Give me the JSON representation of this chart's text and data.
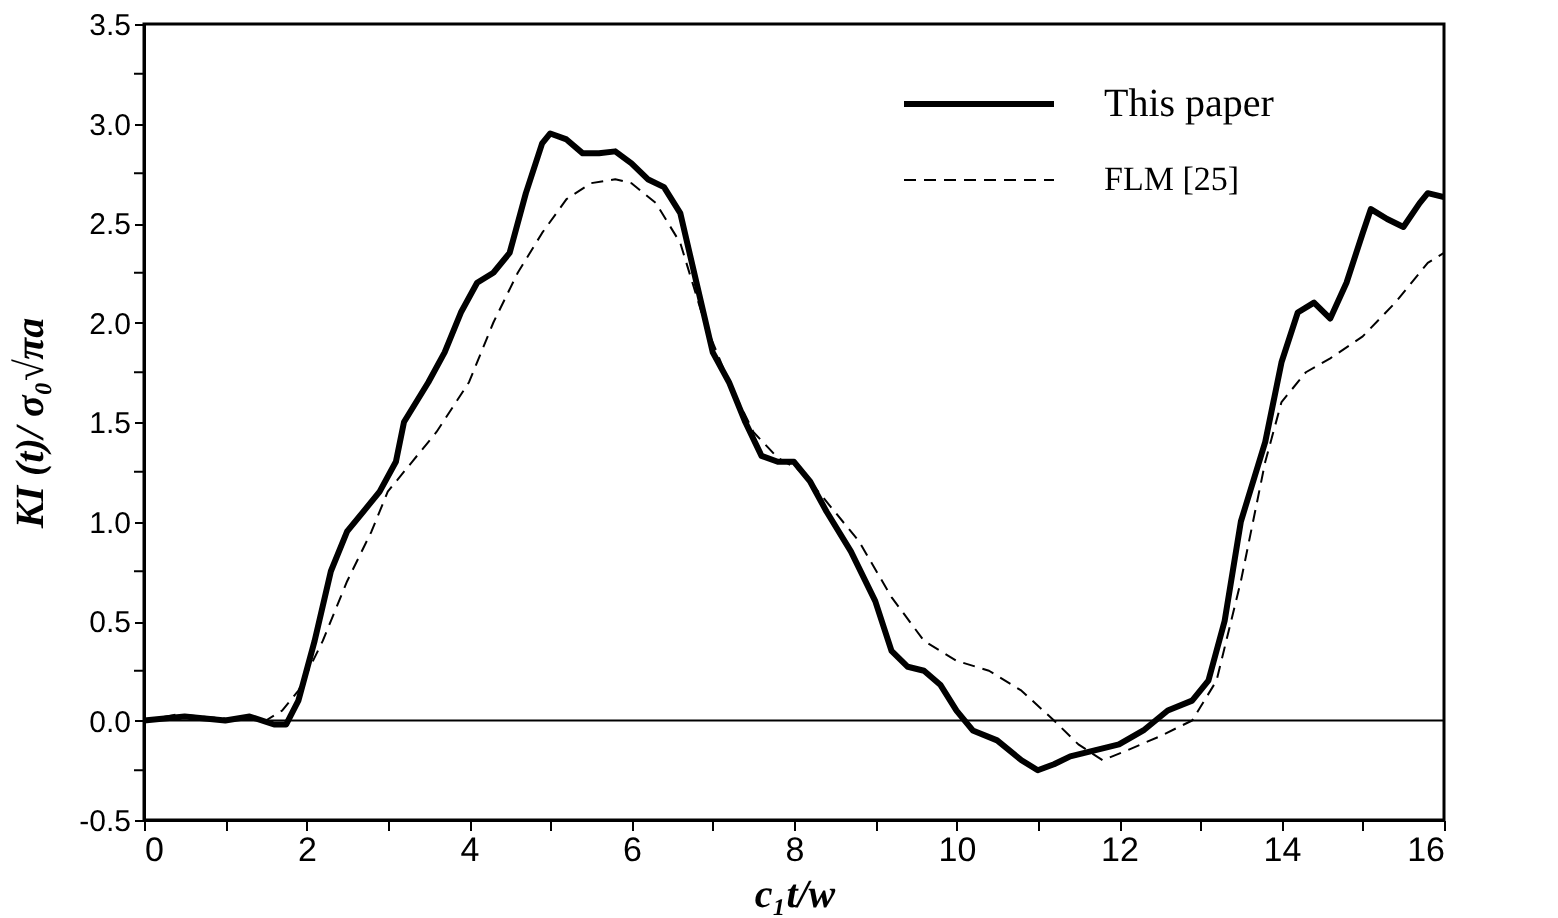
{
  "chart_data": {
    "type": "line",
    "xlabel": "c₁t/w",
    "ylabel": "KI (t)/ σ₀√πa",
    "xlim": [
      0,
      16
    ],
    "ylim": [
      -0.5,
      3.5
    ],
    "xticks": [
      0,
      {
        "value": 1,
        "label": null
      },
      2,
      {
        "value": 3,
        "label": null
      },
      4,
      {
        "value": 5,
        "label": null
      },
      6,
      {
        "value": 7,
        "label": null
      },
      8,
      {
        "value": 9,
        "label": null
      },
      10,
      {
        "value": 11,
        "label": null
      },
      12,
      {
        "value": 13,
        "label": null
      },
      14,
      {
        "value": 15,
        "label": null
      },
      16
    ],
    "yticks": [
      -0.5,
      {
        "value": -0.25,
        "label": null
      },
      {
        "value": 0,
        "label": "0.0"
      },
      {
        "value": 0.25,
        "label": null
      },
      0.5,
      {
        "value": 0.75,
        "label": null
      },
      {
        "value": 1,
        "label": "1.0"
      },
      {
        "value": 1.25,
        "label": null
      },
      1.5,
      {
        "value": 1.75,
        "label": null
      },
      {
        "value": 2,
        "label": "2.0"
      },
      {
        "value": 2.25,
        "label": null
      },
      2.5,
      {
        "value": 2.75,
        "label": null
      },
      {
        "value": 3,
        "label": "3.0"
      },
      {
        "value": 3.25,
        "label": null
      },
      3.5
    ],
    "ref_lines": [
      {
        "axis": "y",
        "value": 0,
        "color": "#000000"
      }
    ],
    "grid": false,
    "legend": "top right",
    "series": [
      {
        "name": "This paper",
        "color": "#000000",
        "line_style": "solid",
        "x": [
          0,
          0.5,
          1,
          1.3,
          1.6,
          1.75,
          1.9,
          2.1,
          2.3,
          2.5,
          2.7,
          2.9,
          3.1,
          3.2,
          3.5,
          3.7,
          3.9,
          4.1,
          4.3,
          4.5,
          4.7,
          4.9,
          5.0,
          5.2,
          5.4,
          5.6,
          5.8,
          6.0,
          6.2,
          6.4,
          6.6,
          6.8,
          7.0,
          7.2,
          7.4,
          7.6,
          7.8,
          8.0,
          8.2,
          8.4,
          8.7,
          9.0,
          9.2,
          9.4,
          9.6,
          9.8,
          10.0,
          10.2,
          10.5,
          10.8,
          11.0,
          11.2,
          11.4,
          11.7,
          12.0,
          12.3,
          12.6,
          12.9,
          13.1,
          13.3,
          13.5,
          13.8,
          14.0,
          14.2,
          14.4,
          14.6,
          14.8,
          15.0,
          15.1,
          15.3,
          15.5,
          15.7,
          15.8,
          16.0
        ],
        "values": [
          0,
          0.02,
          0,
          0.02,
          -0.02,
          -0.02,
          0.1,
          0.4,
          0.75,
          0.95,
          1.05,
          1.15,
          1.3,
          1.5,
          1.7,
          1.85,
          2.05,
          2.2,
          2.25,
          2.35,
          2.65,
          2.9,
          2.95,
          2.92,
          2.85,
          2.85,
          2.86,
          2.8,
          2.72,
          2.68,
          2.55,
          2.2,
          1.85,
          1.7,
          1.5,
          1.33,
          1.3,
          1.3,
          1.2,
          1.05,
          0.85,
          0.6,
          0.35,
          0.27,
          0.25,
          0.18,
          0.05,
          -0.05,
          -0.1,
          -0.2,
          -0.25,
          -0.22,
          -0.18,
          -0.15,
          -0.12,
          -0.05,
          0.05,
          0.1,
          0.2,
          0.5,
          1.0,
          1.4,
          1.8,
          2.05,
          2.1,
          2.02,
          2.2,
          2.45,
          2.57,
          2.52,
          2.48,
          2.6,
          2.65,
          2.63
        ]
      },
      {
        "name": "FLM [25]",
        "color": "#000000",
        "line_style": "dashed",
        "x": [
          0,
          0.4,
          1,
          1.5,
          1.7,
          1.9,
          2.2,
          2.5,
          2.8,
          3.0,
          3.3,
          3.6,
          4.0,
          4.3,
          4.6,
          4.9,
          5.2,
          5.5,
          5.8,
          6.0,
          6.3,
          6.6,
          6.9,
          7.2,
          7.5,
          7.8,
          8.1,
          8.4,
          8.8,
          9.2,
          9.6,
          10.0,
          10.4,
          10.8,
          11.2,
          11.5,
          11.8,
          12.1,
          12.5,
          12.9,
          13.2,
          13.5,
          13.8,
          14.0,
          14.3,
          14.6,
          15.0,
          15.4,
          15.8,
          16.0
        ],
        "values": [
          0,
          0.03,
          0.01,
          0,
          0.05,
          0.15,
          0.4,
          0.7,
          0.95,
          1.15,
          1.3,
          1.45,
          1.7,
          2.0,
          2.25,
          2.45,
          2.62,
          2.7,
          2.72,
          2.7,
          2.6,
          2.4,
          2.0,
          1.7,
          1.45,
          1.32,
          1.25,
          1.1,
          0.9,
          0.62,
          0.4,
          0.3,
          0.25,
          0.15,
          0,
          -0.12,
          -0.2,
          -0.15,
          -0.08,
          0,
          0.2,
          0.7,
          1.3,
          1.6,
          1.75,
          1.82,
          1.93,
          2.1,
          2.3,
          2.35
        ]
      }
    ]
  }
}
